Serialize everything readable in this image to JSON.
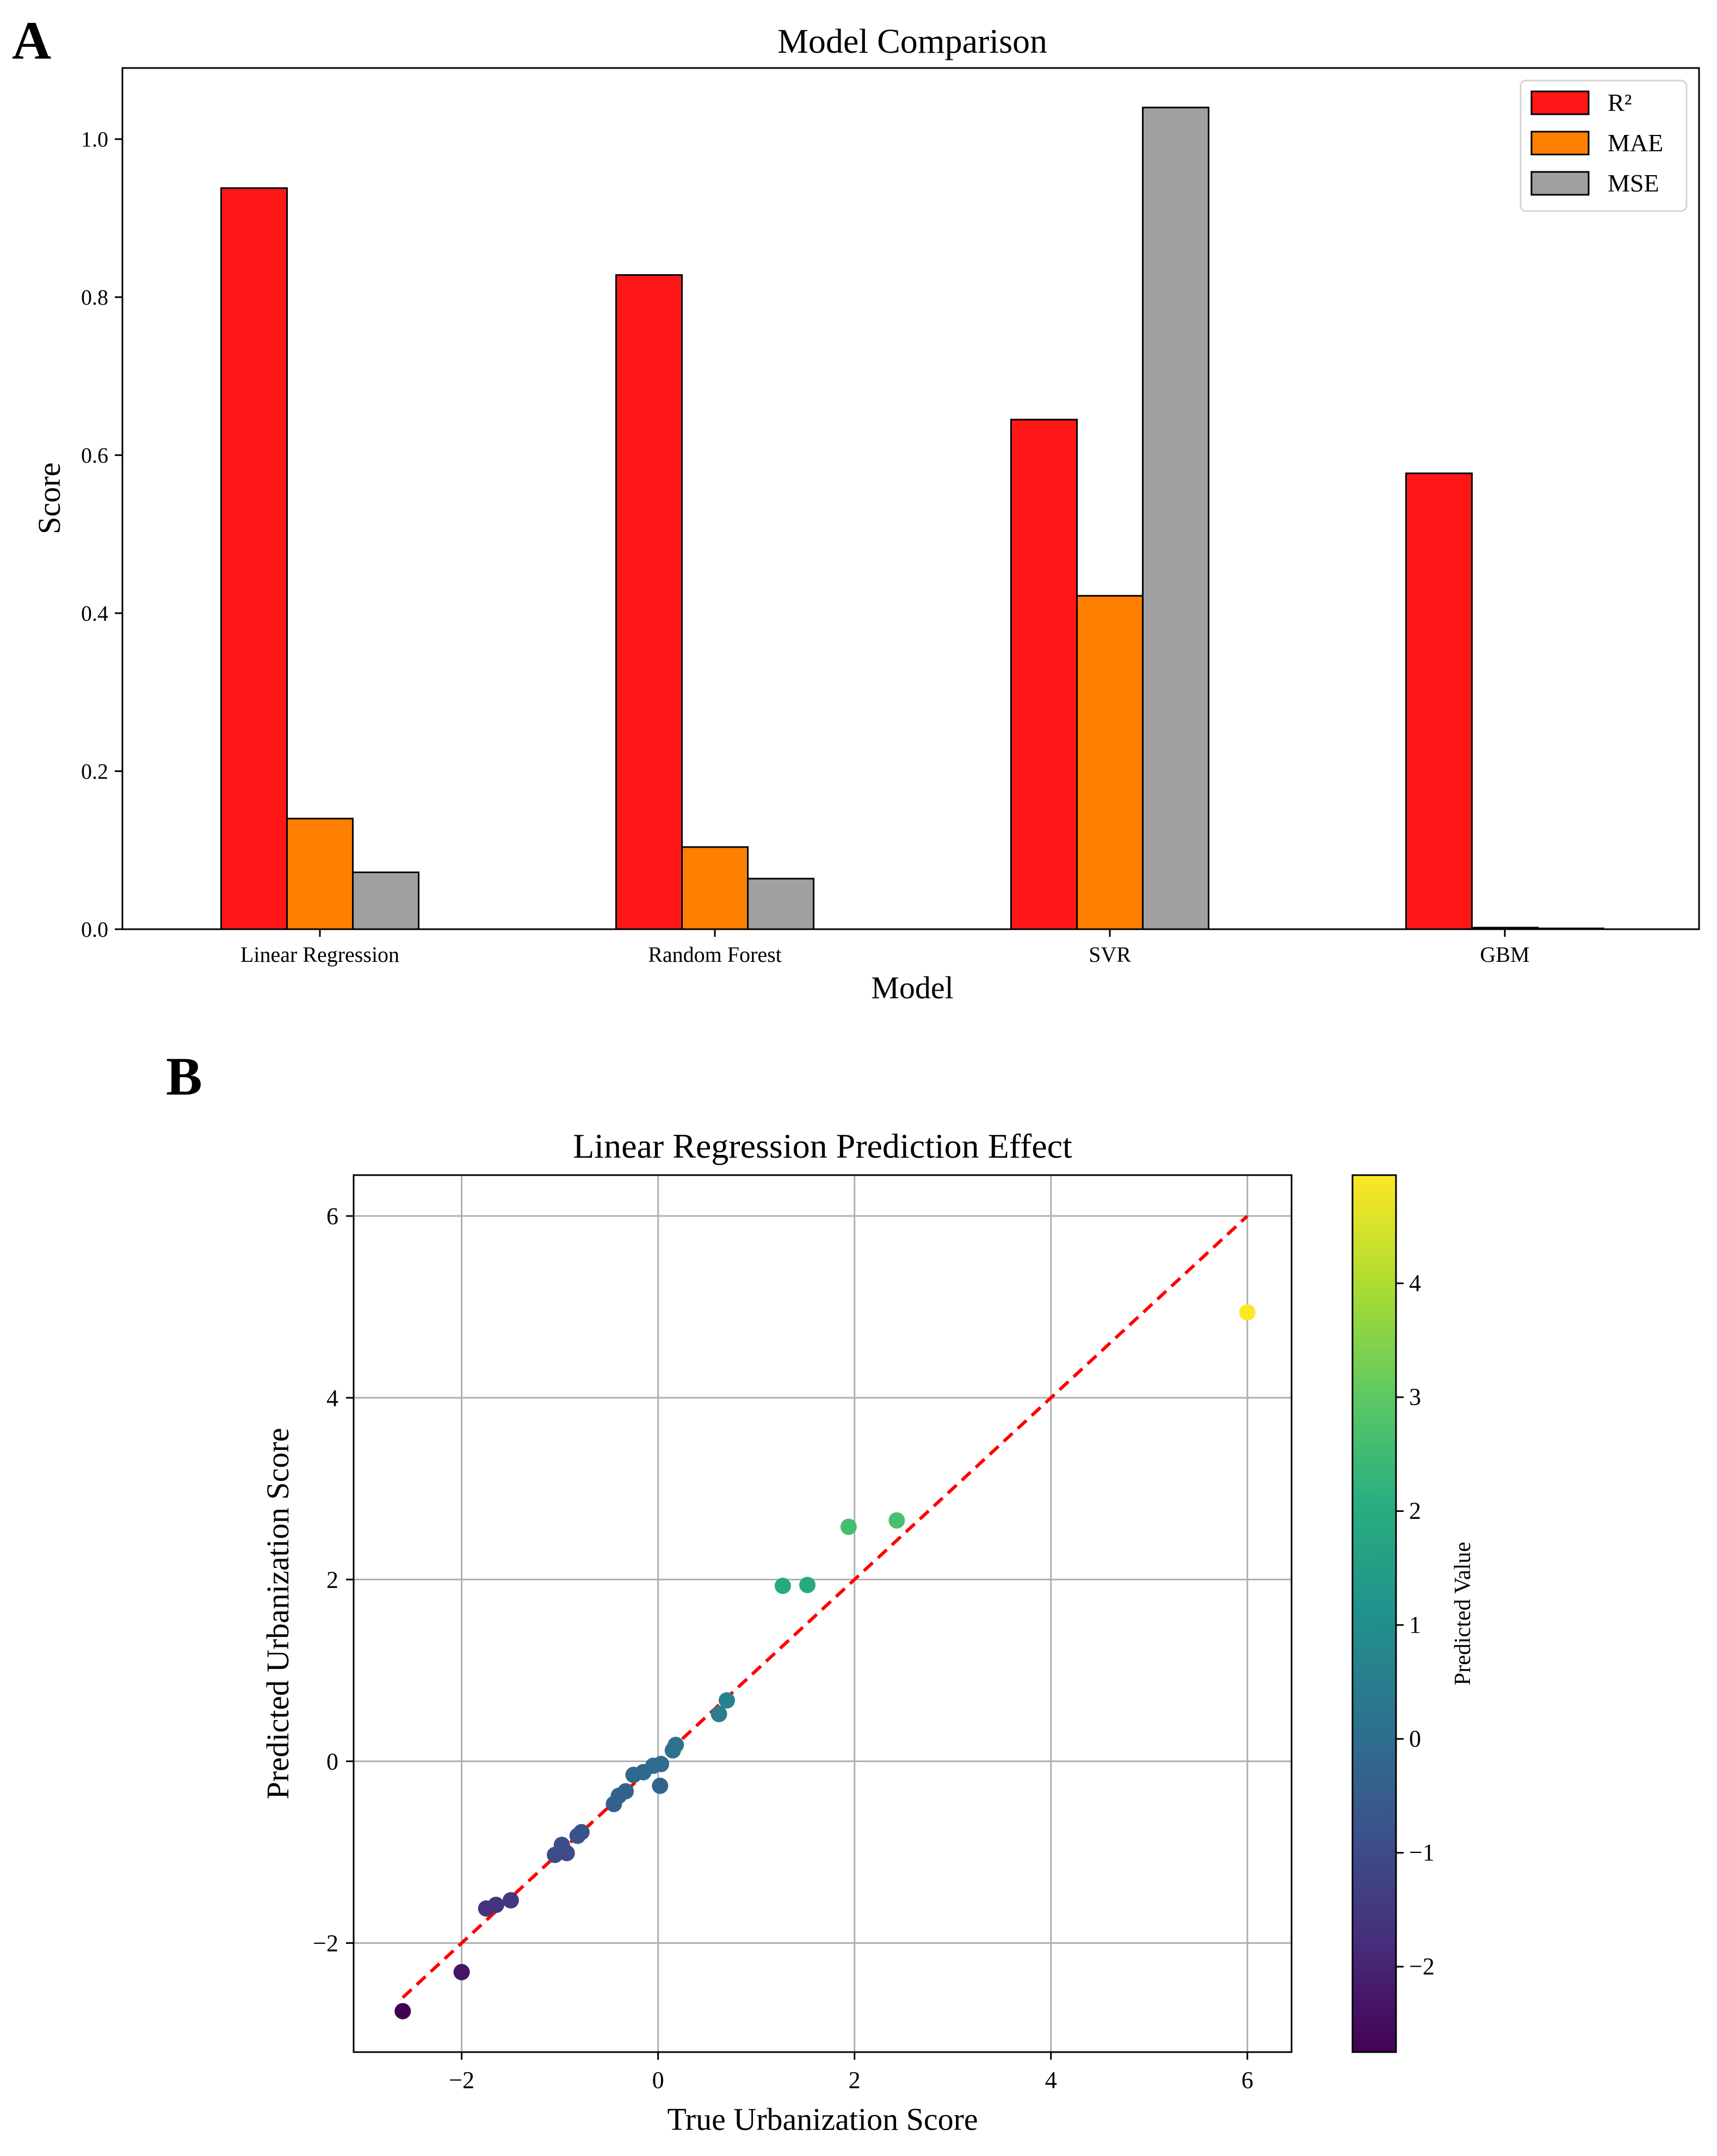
{
  "figure": {
    "panel_a_letter": "A",
    "panel_b_letter": "B"
  },
  "chart_data": [
    {
      "type": "bar",
      "title": "Model Comparison",
      "xlabel": "Model",
      "ylabel": "Score",
      "categories": [
        "Linear Regression",
        "Random Forest",
        "SVR",
        "GBM"
      ],
      "series": [
        {
          "name": "R²",
          "color": "#ff1717",
          "values": [
            0.938,
            0.828,
            0.645,
            0.577
          ]
        },
        {
          "name": "MAE",
          "color": "#ff7f00",
          "values": [
            0.14,
            0.104,
            0.422,
            0.002
          ]
        },
        {
          "name": "MSE",
          "color": "#a0a0a0",
          "values": [
            0.072,
            0.064,
            1.04,
            0.001
          ]
        }
      ],
      "ylim": [
        0,
        1.09
      ],
      "yticks": [
        "0.0",
        "0.2",
        "0.4",
        "0.6",
        "0.8",
        "1.0"
      ],
      "legend_position": "top-right"
    },
    {
      "type": "scatter",
      "title": "Linear Regression Prediction Effect",
      "xlabel": "True Urbanization Score",
      "ylabel": "Predicted Urbanization Score",
      "xlim": [
        -3.1,
        6.45
      ],
      "ylim": [
        -3.2,
        6.45
      ],
      "xticks": [
        "−2",
        "0",
        "2",
        "4",
        "6"
      ],
      "yticks": [
        "−2",
        "0",
        "2",
        "4",
        "6"
      ],
      "grid": true,
      "reference_line": {
        "style": "dashed",
        "color": "#ff0000",
        "from": [
          -2.6,
          -2.6
        ],
        "to": [
          6.0,
          6.0
        ]
      },
      "colormap": "viridis",
      "colorbar": {
        "label": "Predicted Value",
        "range": [
          -2.75,
          4.95
        ],
        "ticks": [
          "−2",
          "−1",
          "0",
          "1",
          "2",
          "3",
          "4"
        ]
      },
      "points": [
        {
          "x": -2.6,
          "y": -2.75
        },
        {
          "x": -2.0,
          "y": -2.32
        },
        {
          "x": -1.75,
          "y": -1.62
        },
        {
          "x": -1.65,
          "y": -1.58
        },
        {
          "x": -1.5,
          "y": -1.53
        },
        {
          "x": -1.05,
          "y": -1.03
        },
        {
          "x": -0.98,
          "y": -0.92
        },
        {
          "x": -0.93,
          "y": -1.01
        },
        {
          "x": -0.82,
          "y": -0.82
        },
        {
          "x": -0.78,
          "y": -0.78
        },
        {
          "x": -0.45,
          "y": -0.47
        },
        {
          "x": -0.4,
          "y": -0.38
        },
        {
          "x": -0.33,
          "y": -0.33
        },
        {
          "x": -0.25,
          "y": -0.15
        },
        {
          "x": -0.15,
          "y": -0.12
        },
        {
          "x": -0.05,
          "y": -0.05
        },
        {
          "x": 0.02,
          "y": -0.27
        },
        {
          "x": 0.03,
          "y": -0.03
        },
        {
          "x": 0.15,
          "y": 0.12
        },
        {
          "x": 0.18,
          "y": 0.18
        },
        {
          "x": 0.62,
          "y": 0.52
        },
        {
          "x": 0.7,
          "y": 0.67
        },
        {
          "x": 1.27,
          "y": 1.93
        },
        {
          "x": 1.52,
          "y": 1.94
        },
        {
          "x": 1.94,
          "y": 2.58
        },
        {
          "x": 2.43,
          "y": 2.65
        },
        {
          "x": 6.0,
          "y": 4.94
        }
      ]
    }
  ]
}
